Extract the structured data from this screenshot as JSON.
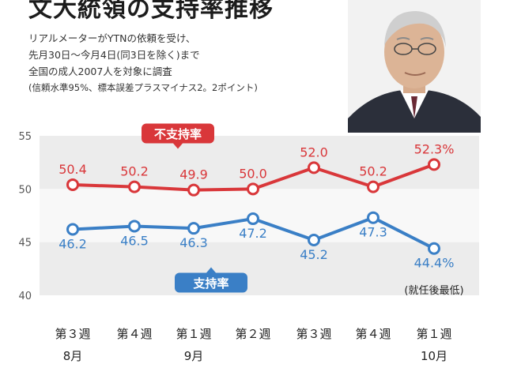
{
  "title": "文大統領の支持率推移",
  "notes": [
    "リアルメーターがYTNの依頼を受け、",
    "先月30日～今月4日(同3日を除く)まで",
    "全国の成人2007人を対象に調査",
    "(信頼水準95%、標本誤差プラスマイナス2。2ポイント)"
  ],
  "chart_data": {
    "type": "line",
    "categories": [
      "第３週",
      "第４週",
      "第１週",
      "第２週",
      "第３週",
      "第４週",
      "第１週"
    ],
    "month_labels": [
      {
        "label": "8月",
        "index": 0
      },
      {
        "label": "9月",
        "index": 2
      },
      {
        "label": "10月",
        "index": 6
      }
    ],
    "yticks": [
      55,
      50,
      45,
      40
    ],
    "ylim": [
      40,
      55
    ],
    "series": [
      {
        "name": "不支持率",
        "color": "#d9373a",
        "values": [
          50.4,
          50.2,
          49.9,
          50.0,
          52.0,
          50.2,
          52.3
        ],
        "labels": [
          "50.4",
          "50.2",
          "49.9",
          "50.0",
          "52.0",
          "50.2",
          "52.3%"
        ]
      },
      {
        "name": "支持率",
        "color": "#3a7fc6",
        "values": [
          46.2,
          46.5,
          46.3,
          47.2,
          45.2,
          47.3,
          44.4
        ],
        "labels": [
          "46.2",
          "46.5",
          "46.3",
          "47.2",
          "45.2",
          "47.3",
          "44.4%"
        ]
      }
    ],
    "annotations": [
      {
        "text": "(就任後最低)",
        "index": 6
      }
    ]
  }
}
